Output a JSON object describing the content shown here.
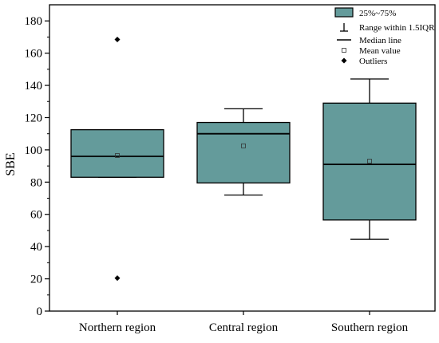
{
  "chart_data": {
    "type": "box",
    "ylabel": "SBE",
    "xlabel": "",
    "ylim": [
      0,
      190
    ],
    "yticks_major": [
      0,
      20,
      40,
      60,
      80,
      100,
      120,
      140,
      160,
      180
    ],
    "yticks_minor": [
      10,
      30,
      50,
      70,
      90,
      110,
      130,
      150,
      170
    ],
    "categories": [
      "Northern region",
      "Central region",
      "Southern region"
    ],
    "boxes": [
      {
        "q1": 83,
        "median": 96,
        "q3": 112.5,
        "whisker_low": 83,
        "whisker_high": 112.5,
        "mean": 96.5,
        "outliers": [
          168.5,
          20.5
        ]
      },
      {
        "q1": 79.5,
        "median": 110,
        "q3": 117,
        "whisker_low": 72,
        "whisker_high": 125.5,
        "mean": 102.5,
        "outliers": []
      },
      {
        "q1": 56.5,
        "median": 91,
        "q3": 129,
        "whisker_low": 44.5,
        "whisker_high": 144,
        "mean": 93,
        "outliers": []
      }
    ],
    "box_color": "#649b9b",
    "legend": {
      "position": "top-right",
      "items": [
        {
          "symbol": "box",
          "label": "25%~75%"
        },
        {
          "symbol": "whisker",
          "label": "Range within 1.5IQR"
        },
        {
          "symbol": "median",
          "label": "Median line"
        },
        {
          "symbol": "mean",
          "label": "Mean value"
        },
        {
          "symbol": "outlier",
          "label": "Outliers"
        }
      ]
    }
  }
}
